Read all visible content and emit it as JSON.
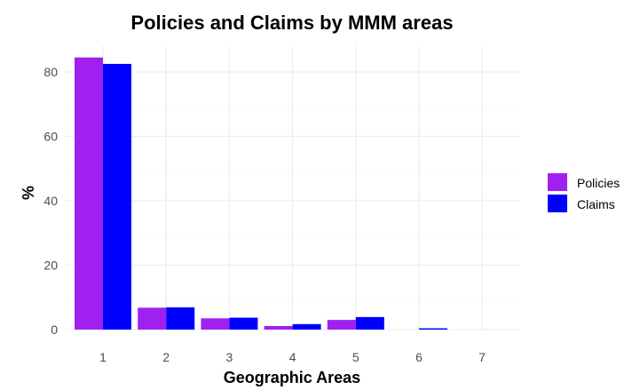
{
  "chart_data": {
    "type": "bar",
    "title": "Policies and Claims by MMM areas",
    "xlabel": "Geographic Areas",
    "ylabel": "%",
    "categories": [
      "1",
      "2",
      "3",
      "4",
      "5",
      "6",
      "7"
    ],
    "series": [
      {
        "name": "Policies",
        "color": "#a020f0",
        "values": [
          84.5,
          6.8,
          3.5,
          1.1,
          3.0,
          0.0,
          0.0
        ]
      },
      {
        "name": "Claims",
        "color": "#0000ff",
        "values": [
          82.5,
          6.9,
          3.7,
          1.7,
          3.9,
          0.4,
          0.0
        ]
      }
    ],
    "ylim": [
      0,
      88
    ],
    "yticks": [
      0,
      20,
      40,
      60,
      80
    ],
    "grid": true,
    "legend_position": "right"
  }
}
